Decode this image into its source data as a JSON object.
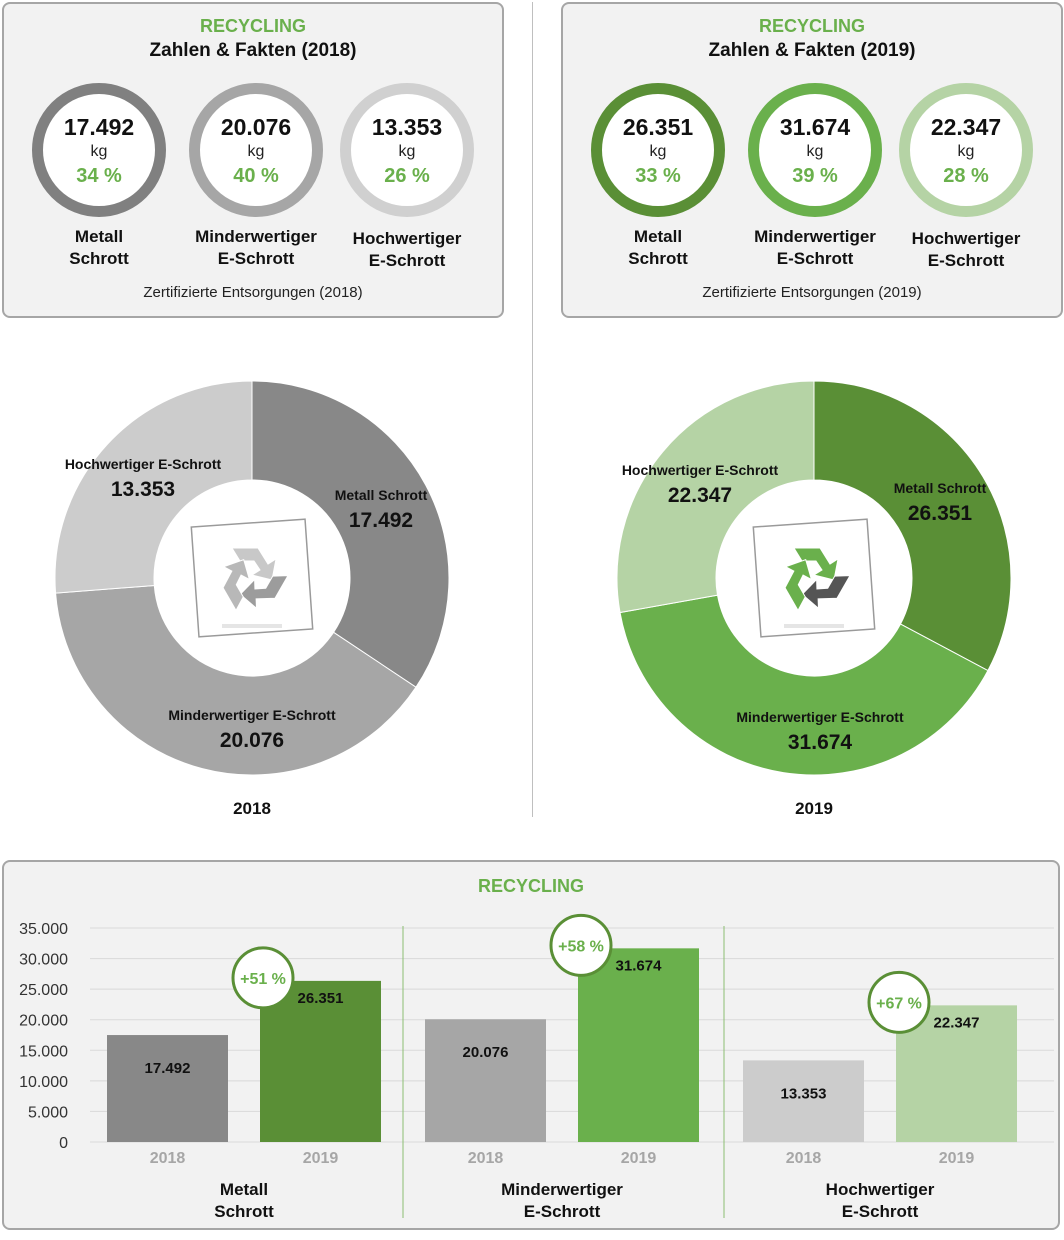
{
  "panels": [
    {
      "kicker": "RECYCLING",
      "title": "Zahlen & Fakten (2018)",
      "footer": "Zertifizierte Entsorgungen (2018)",
      "items": [
        {
          "value": "17.492",
          "unit": "kg",
          "pct": "34 %",
          "label1": "Metall",
          "label2": "Schrott",
          "color": "#808080"
        },
        {
          "value": "20.076",
          "unit": "kg",
          "pct": "40 %",
          "label1": "Minderwertiger",
          "label2": "E-Schrott",
          "color": "#a6a6a6"
        },
        {
          "value": "13.353",
          "unit": "kg",
          "pct": "26 %",
          "label1": "Hochwertiger",
          "label2": "E-Schrott",
          "color": "#d0d0d0"
        }
      ]
    },
    {
      "kicker": "RECYCLING",
      "title": "Zahlen & Fakten (2019)",
      "footer": "Zertifizierte Entsorgungen (2019)",
      "items": [
        {
          "value": "26.351",
          "unit": "kg",
          "pct": "33 %",
          "label1": "Metall",
          "label2": "Schrott",
          "color": "#5a8f36"
        },
        {
          "value": "31.674",
          "unit": "kg",
          "pct": "39 %",
          "label1": "Minderwertiger",
          "label2": "E-Schrott",
          "color": "#6ab04c"
        },
        {
          "value": "22.347",
          "unit": "kg",
          "pct": "28 %",
          "label1": "Hochwertiger",
          "label2": "E-Schrott",
          "color": "#b5d3a5"
        }
      ]
    }
  ],
  "accent_color": "#6ab04c",
  "chart_data": [
    {
      "type": "pie",
      "variant": "donut",
      "title": "2018",
      "center_icon": "recycle-icon",
      "slices": [
        {
          "label": "Metall Schrott",
          "value": 17492,
          "value_label": "17.492",
          "color": "#888888"
        },
        {
          "label": "Minderwertiger E-Schrott",
          "value": 20076,
          "value_label": "20.076",
          "color": "#a6a6a6"
        },
        {
          "label": "Hochwertiger E-Schrott",
          "value": 13353,
          "value_label": "13.353",
          "color": "#cccccc"
        }
      ]
    },
    {
      "type": "pie",
      "variant": "donut",
      "title": "2019",
      "center_icon": "recycle-icon",
      "slices": [
        {
          "label": "Metall Schrott",
          "value": 26351,
          "value_label": "26.351",
          "color": "#5a8f36"
        },
        {
          "label": "Minderwertiger E-Schrott",
          "value": 31674,
          "value_label": "31.674",
          "color": "#6ab04c"
        },
        {
          "label": "Hochwertiger E-Schrott",
          "value": 22347,
          "value_label": "22.347",
          "color": "#b5d3a5"
        }
      ]
    },
    {
      "type": "bar",
      "title": "RECYCLING",
      "ylim": [
        0,
        35000
      ],
      "yticks": [
        "0",
        "5.000",
        "10.000",
        "15.000",
        "20.000",
        "25.000",
        "30.000",
        "35.000"
      ],
      "grid": true,
      "groups": [
        {
          "name1": "Metall",
          "name2": "Schrott",
          "change": "+51 %",
          "bars": [
            {
              "year": "2018",
              "value": 17492,
              "value_label": "17.492",
              "color": "#888888"
            },
            {
              "year": "2019",
              "value": 26351,
              "value_label": "26.351",
              "color": "#5a8f36"
            }
          ]
        },
        {
          "name1": "Minderwertiger",
          "name2": "E-Schrott",
          "change": "+58 %",
          "bars": [
            {
              "year": "2018",
              "value": 20076,
              "value_label": "20.076",
              "color": "#a6a6a6"
            },
            {
              "year": "2019",
              "value": 31674,
              "value_label": "31.674",
              "color": "#6ab04c"
            }
          ]
        },
        {
          "name1": "Hochwertiger",
          "name2": "E-Schrott",
          "change": "+67 %",
          "bars": [
            {
              "year": "2018",
              "value": 13353,
              "value_label": "13.353",
              "color": "#cccccc"
            },
            {
              "year": "2019",
              "value": 22347,
              "value_label": "22.347",
              "color": "#b5d3a5"
            }
          ]
        }
      ]
    }
  ]
}
